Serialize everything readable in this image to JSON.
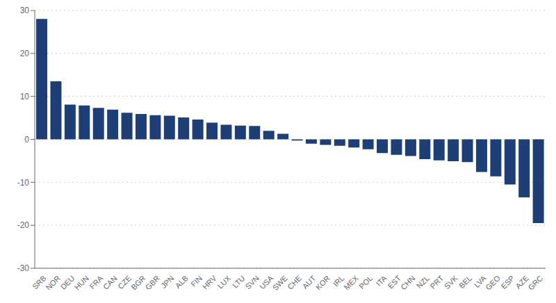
{
  "chart_data": {
    "type": "bar",
    "categories": [
      "SRB",
      "NOR",
      "DEU",
      "HUN",
      "FRA",
      "CAN",
      "CZE",
      "BGR",
      "GBR",
      "JPN",
      "ALB",
      "FIN",
      "HRV",
      "LUX",
      "LTU",
      "SVN",
      "USA",
      "SWE",
      "CHE",
      "AUT",
      "KOR",
      "IRL",
      "MEX",
      "POL",
      "ITA",
      "EST",
      "CHN",
      "NZL",
      "PRT",
      "SVK",
      "BEL",
      "LVA",
      "GEO",
      "ESP",
      "AZE",
      "GRC"
    ],
    "values": [
      28.0,
      13.5,
      8.1,
      7.9,
      7.3,
      6.9,
      6.2,
      5.9,
      5.6,
      5.5,
      5.1,
      4.6,
      3.9,
      3.4,
      3.2,
      3.1,
      2.0,
      1.3,
      -0.3,
      -1.0,
      -1.3,
      -1.5,
      -1.9,
      -2.3,
      -3.2,
      -3.6,
      -3.9,
      -4.6,
      -4.9,
      -5.1,
      -5.3,
      -7.6,
      -8.6,
      -10.5,
      -13.5,
      -19.5
    ],
    "color": "#1d3f76",
    "ylim": [
      -30,
      30
    ],
    "yticks": [
      -30,
      -20,
      -10,
      0,
      10,
      20,
      30
    ],
    "grid": true
  }
}
